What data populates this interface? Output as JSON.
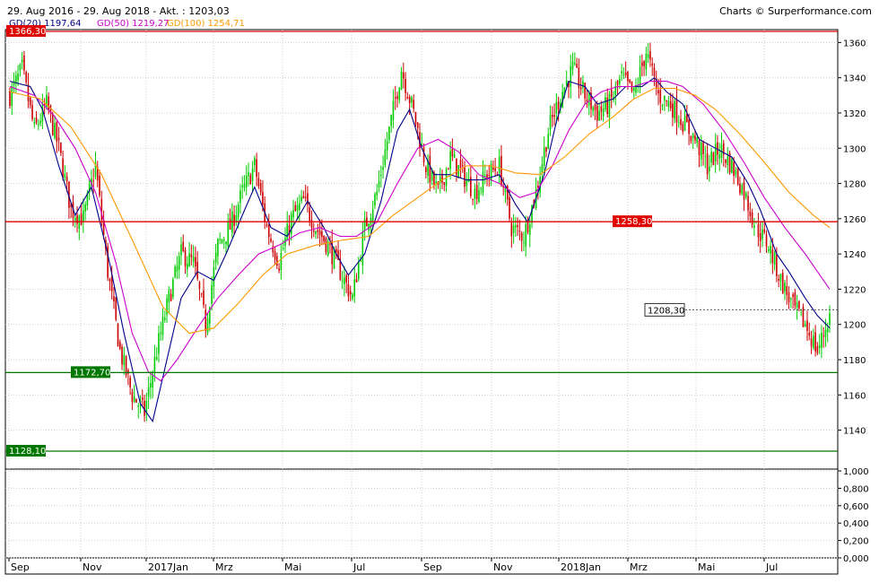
{
  "header": {
    "range": "29. Aug 2016 - 29. Aug 2018 - Akt. : 1203,03",
    "credit": "Charts © Surperformance.com"
  },
  "indicators": [
    {
      "label": "GD(20)",
      "value": "1197,64",
      "color": "#00008b"
    },
    {
      "label": "GD(50)",
      "value": "1219,27",
      "color": "#cc00cc"
    },
    {
      "label": "GD(100)",
      "value": "1254,71",
      "color": "#ff9900"
    }
  ],
  "chart_data": {
    "type": "line",
    "price_axis": {
      "ticks": [
        "1140",
        "1160",
        "1180",
        "1200",
        "1220",
        "1240",
        "1260",
        "1280",
        "1300",
        "1320",
        "1340",
        "1360"
      ],
      "range": [
        1100,
        1370
      ]
    },
    "lower_panel_axis": {
      "ticks": [
        "0,000",
        "0,200",
        "0,400",
        "0,600",
        "0,800",
        "1,000"
      ],
      "range": [
        0,
        1
      ]
    },
    "x_labels": [
      "Sep",
      "Nov",
      "2017Jan",
      "Mrz",
      "Mai",
      "Jul",
      "Sep",
      "Nov",
      "2018Jan",
      "Mrz",
      "Mai",
      "Jul"
    ],
    "levels": [
      {
        "label": "1366,30",
        "value": 1366.3,
        "color": "#e00000"
      },
      {
        "label": "1258,30",
        "value": 1258.3,
        "color": "#e00000"
      },
      {
        "label": "1172,70",
        "value": 1172.7,
        "color": "#007700"
      },
      {
        "label": "1128,10",
        "value": 1128.1,
        "color": "#007700"
      }
    ],
    "current_price": {
      "label": "1208,30",
      "value": 1208.3
    },
    "close_anchors": [
      [
        0,
        1330
      ],
      [
        6,
        1345
      ],
      [
        12,
        1310
      ],
      [
        18,
        1325
      ],
      [
        24,
        1300
      ],
      [
        30,
        1265
      ],
      [
        36,
        1260
      ],
      [
        42,
        1290
      ],
      [
        48,
        1230
      ],
      [
        54,
        1185
      ],
      [
        60,
        1160
      ],
      [
        66,
        1150
      ],
      [
        72,
        1185
      ],
      [
        78,
        1215
      ],
      [
        84,
        1240
      ],
      [
        90,
        1235
      ],
      [
        96,
        1200
      ],
      [
        102,
        1245
      ],
      [
        108,
        1255
      ],
      [
        114,
        1275
      ],
      [
        120,
        1290
      ],
      [
        126,
        1255
      ],
      [
        132,
        1235
      ],
      [
        138,
        1260
      ],
      [
        144,
        1270
      ],
      [
        150,
        1255
      ],
      [
        156,
        1245
      ],
      [
        162,
        1230
      ],
      [
        168,
        1215
      ],
      [
        174,
        1255
      ],
      [
        180,
        1275
      ],
      [
        186,
        1310
      ],
      [
        192,
        1345
      ],
      [
        198,
        1320
      ],
      [
        204,
        1290
      ],
      [
        210,
        1275
      ],
      [
        216,
        1295
      ],
      [
        222,
        1285
      ],
      [
        228,
        1275
      ],
      [
        234,
        1285
      ],
      [
        240,
        1290
      ],
      [
        246,
        1255
      ],
      [
        252,
        1250
      ],
      [
        258,
        1275
      ],
      [
        264,
        1310
      ],
      [
        270,
        1330
      ],
      [
        276,
        1345
      ],
      [
        282,
        1330
      ],
      [
        288,
        1320
      ],
      [
        294,
        1325
      ],
      [
        300,
        1340
      ],
      [
        306,
        1330
      ],
      [
        312,
        1355
      ],
      [
        318,
        1330
      ],
      [
        324,
        1325
      ],
      [
        330,
        1315
      ],
      [
        336,
        1305
      ],
      [
        342,
        1290
      ],
      [
        348,
        1300
      ],
      [
        354,
        1290
      ],
      [
        360,
        1275
      ],
      [
        366,
        1255
      ],
      [
        372,
        1245
      ],
      [
        378,
        1225
      ],
      [
        384,
        1210
      ],
      [
        390,
        1200
      ],
      [
        396,
        1185
      ],
      [
        402,
        1205
      ]
    ],
    "ma": [
      {
        "name": "GD(20)",
        "color": "#00008b",
        "points": [
          [
            0,
            1338
          ],
          [
            10,
            1335
          ],
          [
            16,
            1322
          ],
          [
            24,
            1290
          ],
          [
            32,
            1262
          ],
          [
            40,
            1278
          ],
          [
            48,
            1240
          ],
          [
            56,
            1195
          ],
          [
            64,
            1155
          ],
          [
            70,
            1145
          ],
          [
            76,
            1175
          ],
          [
            84,
            1215
          ],
          [
            92,
            1230
          ],
          [
            100,
            1225
          ],
          [
            106,
            1240
          ],
          [
            114,
            1262
          ],
          [
            120,
            1278
          ],
          [
            128,
            1255
          ],
          [
            136,
            1250
          ],
          [
            146,
            1270
          ],
          [
            154,
            1255
          ],
          [
            160,
            1240
          ],
          [
            166,
            1228
          ],
          [
            174,
            1240
          ],
          [
            182,
            1270
          ],
          [
            190,
            1310
          ],
          [
            196,
            1322
          ],
          [
            202,
            1300
          ],
          [
            208,
            1285
          ],
          [
            216,
            1285
          ],
          [
            224,
            1282
          ],
          [
            232,
            1282
          ],
          [
            240,
            1285
          ],
          [
            248,
            1268
          ],
          [
            254,
            1258
          ],
          [
            262,
            1285
          ],
          [
            268,
            1315
          ],
          [
            274,
            1338
          ],
          [
            282,
            1335
          ],
          [
            288,
            1325
          ],
          [
            296,
            1328
          ],
          [
            302,
            1335
          ],
          [
            310,
            1335
          ],
          [
            316,
            1340
          ],
          [
            322,
            1332
          ],
          [
            330,
            1325
          ],
          [
            338,
            1305
          ],
          [
            346,
            1300
          ],
          [
            354,
            1295
          ],
          [
            362,
            1280
          ],
          [
            368,
            1265
          ],
          [
            376,
            1240
          ],
          [
            382,
            1230
          ],
          [
            390,
            1215
          ],
          [
            396,
            1205
          ],
          [
            402,
            1198
          ]
        ]
      },
      {
        "name": "GD(50)",
        "color": "#cc00cc",
        "points": [
          [
            0,
            1335
          ],
          [
            12,
            1330
          ],
          [
            22,
            1318
          ],
          [
            32,
            1300
          ],
          [
            42,
            1275
          ],
          [
            52,
            1235
          ],
          [
            60,
            1195
          ],
          [
            68,
            1173
          ],
          [
            74,
            1168
          ],
          [
            82,
            1180
          ],
          [
            92,
            1198
          ],
          [
            102,
            1215
          ],
          [
            112,
            1228
          ],
          [
            122,
            1240
          ],
          [
            132,
            1245
          ],
          [
            142,
            1252
          ],
          [
            152,
            1255
          ],
          [
            162,
            1250
          ],
          [
            170,
            1250
          ],
          [
            180,
            1258
          ],
          [
            190,
            1280
          ],
          [
            200,
            1300
          ],
          [
            210,
            1305
          ],
          [
            220,
            1298
          ],
          [
            230,
            1285
          ],
          [
            240,
            1280
          ],
          [
            250,
            1272
          ],
          [
            258,
            1275
          ],
          [
            266,
            1290
          ],
          [
            274,
            1310
          ],
          [
            282,
            1325
          ],
          [
            290,
            1332
          ],
          [
            298,
            1335
          ],
          [
            306,
            1335
          ],
          [
            314,
            1338
          ],
          [
            322,
            1338
          ],
          [
            330,
            1335
          ],
          [
            340,
            1325
          ],
          [
            350,
            1310
          ],
          [
            360,
            1292
          ],
          [
            370,
            1272
          ],
          [
            380,
            1255
          ],
          [
            390,
            1240
          ],
          [
            396,
            1230
          ],
          [
            402,
            1220
          ]
        ]
      },
      {
        "name": "GD(100)",
        "color": "#ff9900",
        "points": [
          [
            0,
            1332
          ],
          [
            15,
            1328
          ],
          [
            30,
            1312
          ],
          [
            45,
            1285
          ],
          [
            60,
            1248
          ],
          [
            75,
            1210
          ],
          [
            88,
            1195
          ],
          [
            100,
            1198
          ],
          [
            112,
            1212
          ],
          [
            124,
            1228
          ],
          [
            136,
            1240
          ],
          [
            150,
            1245
          ],
          [
            164,
            1248
          ],
          [
            176,
            1250
          ],
          [
            188,
            1262
          ],
          [
            200,
            1272
          ],
          [
            212,
            1282
          ],
          [
            224,
            1290
          ],
          [
            236,
            1290
          ],
          [
            248,
            1286
          ],
          [
            260,
            1285
          ],
          [
            272,
            1295
          ],
          [
            284,
            1308
          ],
          [
            296,
            1318
          ],
          [
            306,
            1328
          ],
          [
            316,
            1334
          ],
          [
            326,
            1334
          ],
          [
            336,
            1330
          ],
          [
            346,
            1322
          ],
          [
            358,
            1308
          ],
          [
            370,
            1292
          ],
          [
            382,
            1275
          ],
          [
            394,
            1262
          ],
          [
            402,
            1255
          ]
        ]
      }
    ]
  }
}
